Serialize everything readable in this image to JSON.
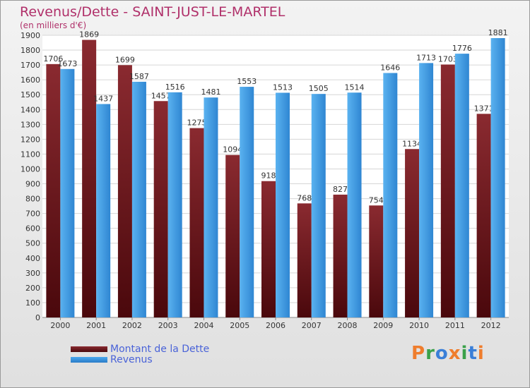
{
  "chart_data": {
    "type": "bar",
    "title": "Revenus/Dette - SAINT-JUST-LE-MARTEL",
    "subtitle": "(en milliers d'€)",
    "categories": [
      "2000",
      "2001",
      "2002",
      "2003",
      "2004",
      "2005",
      "2006",
      "2007",
      "2008",
      "2009",
      "2010",
      "2011",
      "2012"
    ],
    "series": [
      {
        "name": "Montant de la Dette",
        "color": "#7a1e24",
        "values": [
          1706,
          1869,
          1699,
          1457,
          1275,
          1094,
          918,
          768,
          827,
          754,
          1134,
          1703,
          1371
        ],
        "labels": [
          "1706",
          "1869",
          "1699",
          "1457",
          "1275",
          "1094",
          "918",
          "768",
          "827",
          "754",
          "1134",
          "1703",
          "1371"
        ]
      },
      {
        "name": "Revenus",
        "color": "#3f9ee6",
        "values": [
          1673,
          1437,
          1587,
          1516,
          1481,
          1553,
          1513,
          1505,
          1514,
          1646,
          1713,
          1776,
          1881
        ],
        "labels": [
          "1673",
          "1437",
          "1587",
          "1516",
          "1481",
          "1553",
          "1513",
          "1505",
          "1514",
          "1646",
          "1713",
          "1776",
          "1881"
        ]
      }
    ],
    "ylim": [
      0,
      1900
    ],
    "yticks": [
      "0",
      "100",
      "200",
      "300",
      "400",
      "500",
      "600",
      "700",
      "800",
      "900",
      "1000",
      "1100",
      "1200",
      "1300",
      "1400",
      "1500",
      "1600",
      "1700",
      "1800",
      "1900"
    ],
    "grid": true,
    "legend_position": "bottom-left"
  },
  "logo": {
    "letters": [
      "P",
      "r",
      "o",
      "x",
      "i",
      "t",
      "i"
    ],
    "colors": [
      "#ef7d2d",
      "#3aa14a",
      "#3a7fd8",
      "#ef7d2d",
      "#3aa14a",
      "#3a7fd8",
      "#ef7d2d"
    ]
  }
}
